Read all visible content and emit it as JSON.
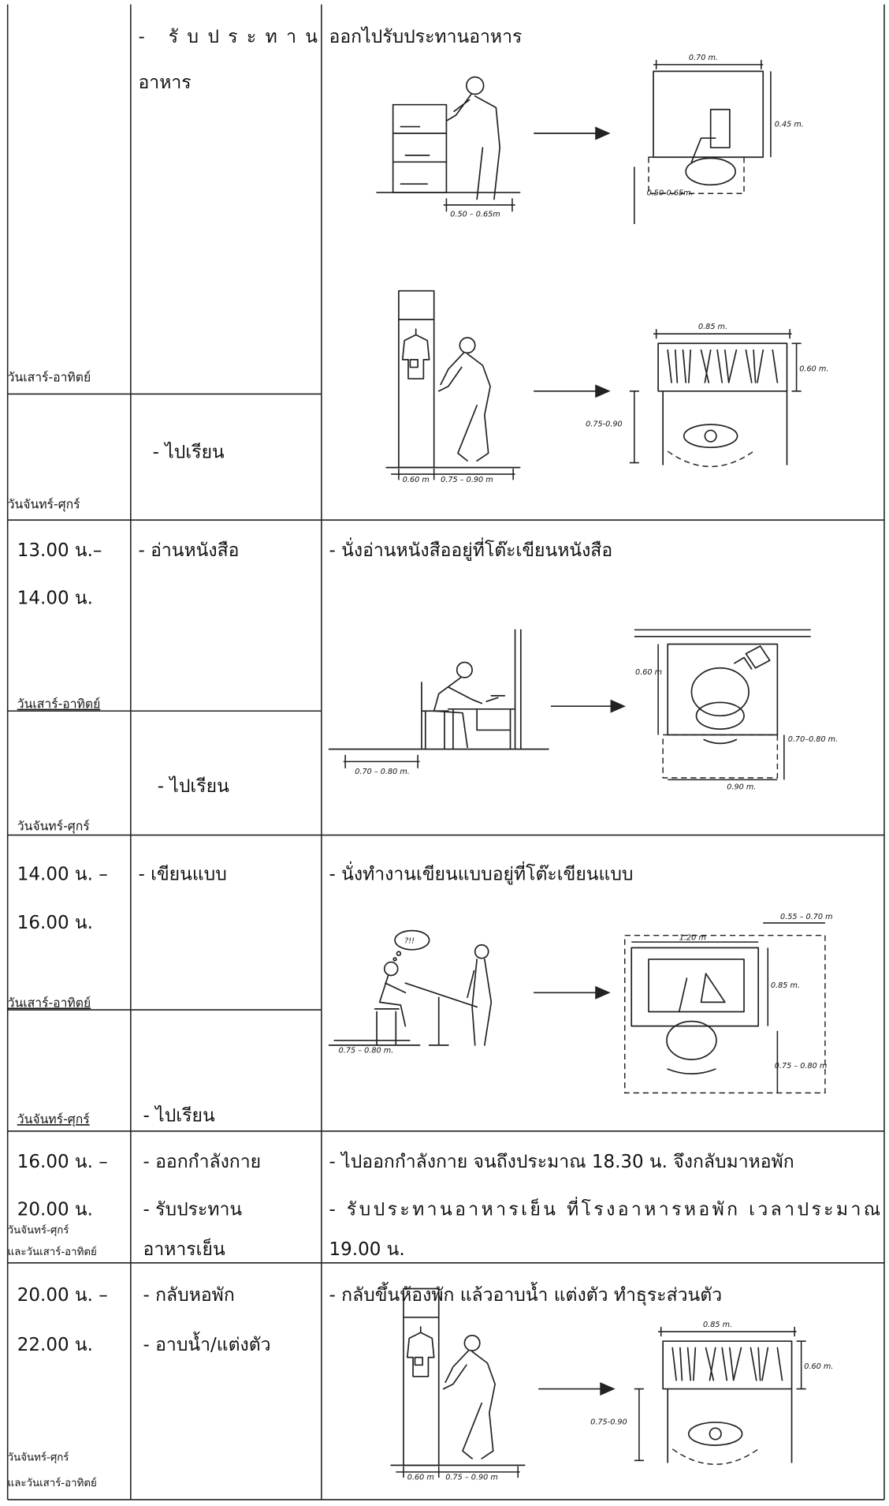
{
  "table": {
    "rows": [
      {
        "days": [
          "วันเสาร์-อาทิตย์",
          "วันจันทร์-ศุกร์"
        ],
        "activities": [
          "- รับประทาน",
          "อาหาร",
          "- ไปเรียน"
        ],
        "description": [
          "ออกไปรับประทานอาหาร"
        ],
        "figure_labels": [
          "0.50 – 0.65m",
          "0.70 m.",
          "0.45 m.",
          "0.50-0.65m.",
          "0.85 m.",
          "0.60 m.",
          "0.75-0.90",
          "0.60 m",
          "0.75 – 0.90 m"
        ]
      },
      {
        "time": [
          "13.00 น.–",
          "14.00 น."
        ],
        "days": [
          "วันเสาร์-อาทิตย์",
          "วันจันทร์-ศุกร์"
        ],
        "activities": [
          "- อ่านหนังสือ",
          "- ไปเรียน"
        ],
        "description": [
          "- นั่งอ่านหนังสืออยู่ที่โต๊ะเขียนหนังสือ"
        ],
        "figure_labels": [
          "0.70 – 0.80 m.",
          "0.60 m",
          "0.70–0.80 m.",
          "0.90 m."
        ]
      },
      {
        "time": [
          "14.00 น. –",
          "16.00 น."
        ],
        "days": [
          "วันเสาร์-อาทิตย์",
          "วันจันทร์-ศุกร์"
        ],
        "activities": [
          "- เขียนแบบ",
          "- ไปเรียน"
        ],
        "description": [
          "- นั่งทำงานเขียนแบบอยู่ที่โต๊ะเขียนแบบ"
        ],
        "figure_labels": [
          "?!!",
          "0.75 – 0.80 m.",
          "1.20 m",
          "0.55 – 0.70 m",
          "0.85 m.",
          "0.75 – 0.80 m"
        ]
      },
      {
        "time": [
          "16.00 น. –",
          "20.00 น."
        ],
        "days": [
          "วันจันทร์-ศุกร์",
          "และวันเสาร์-อาทิตย์"
        ],
        "activities": [
          "- ออกกำลังกาย",
          "- รับประทาน",
          "อาหารเย็น"
        ],
        "description": [
          "- ไปออกกำลังกาย จนถึงประมาณ 18.30 น. จึงกลับมาหอพัก",
          "-  รับประทานอาหารเย็น  ที่โรงอาหารหอพัก  เวลาประมาณ",
          "19.00 น."
        ]
      },
      {
        "time": [
          "20.00 น. –",
          "22.00 น."
        ],
        "days": [
          "วันจันทร์-ศุกร์",
          "และวันเสาร์-อาทิตย์"
        ],
        "activities": [
          "- กลับหอพัก",
          "- อาบน้ำ/แต่งตัว"
        ],
        "description": [
          "- กลับขึ้นห้องพัก แล้วอาบน้ำ แต่งตัว ทำธุระส่วนตัว"
        ],
        "figure_labels": [
          "0.85 m.",
          "0.60 m.",
          "0.75-0.90",
          "0.60 m",
          "0.75 – 0.90 m"
        ]
      }
    ]
  }
}
